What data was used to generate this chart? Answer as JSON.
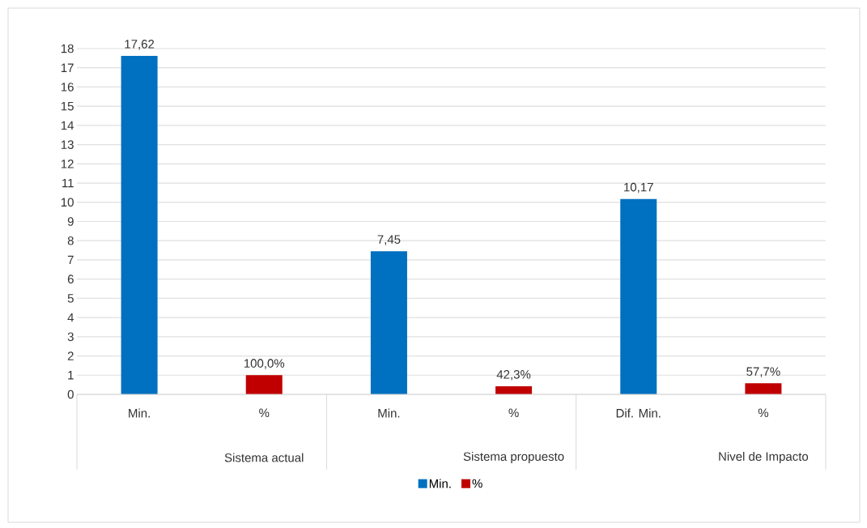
{
  "chart_data": {
    "type": "bar",
    "categories": [
      "Min.",
      "%",
      "Min.",
      "%",
      "Dif. Min.",
      "%"
    ],
    "annotations": [
      "Sistema actual",
      "Sistema propuesto",
      "Nivel de Impacto"
    ],
    "series": [
      {
        "name": "Min.",
        "color": "#0070c0",
        "values": [
          17.62,
          null,
          7.45,
          null,
          10.17,
          null
        ],
        "value_labels": [
          "17,62",
          null,
          "7,45",
          null,
          "10,17",
          null
        ]
      },
      {
        "name": "%",
        "color": "#c00000",
        "values": [
          null,
          1.0,
          null,
          0.423,
          null,
          0.577
        ],
        "value_labels": [
          null,
          "100,0%",
          null,
          "42,3%",
          null,
          "57,7%"
        ]
      }
    ],
    "ylim": [
      0,
      18
    ],
    "yticks": [
      0,
      1,
      2,
      3,
      4,
      5,
      6,
      7,
      8,
      9,
      10,
      11,
      12,
      13,
      14,
      15,
      16,
      17,
      18
    ],
    "grid": "y",
    "legend": "bottom"
  }
}
